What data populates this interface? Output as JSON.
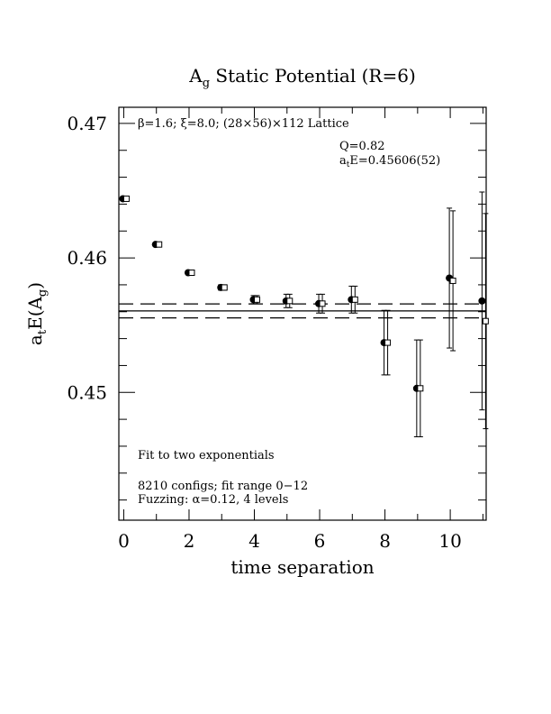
{
  "chart_data": {
    "type": "scatter",
    "title": "A_g Static Potential (R=6)",
    "title_parts": {
      "pre": "A",
      "sub": "g",
      "post": " Static Potential (R=6)"
    },
    "xlabel": "time separation",
    "ylabel": "a_tE(A_g)",
    "ylabel_parts": {
      "a": "a",
      "t_sub": "t",
      "mid": "E(A",
      "g_sub": "g",
      "close": ")"
    },
    "xlim": [
      -0.15,
      11.1
    ],
    "ylim": [
      0.4405,
      0.4712
    ],
    "x_ticks": [
      0,
      2,
      4,
      6,
      8,
      10
    ],
    "x_tick_labels": [
      "0",
      "2",
      "4",
      "6",
      "8",
      "10"
    ],
    "y_ticks": [
      0.45,
      0.46,
      0.47
    ],
    "y_tick_labels": [
      "0.45",
      "0.46",
      "0.47"
    ],
    "annotations": {
      "lattice": "β=1.6; ξ=8.0; (28×56)×112 Lattice",
      "q": "Q=0.82",
      "energy_pre": "a",
      "energy_sub": "t",
      "energy_post": "E=0.45606(52)",
      "fit_type": "Fit to two exponentials",
      "configs": "8210 configs; fit range 0−12",
      "fuzzing": "Fuzzing: α=0.12, 4 levels"
    },
    "fit": {
      "value": 0.45606,
      "error": 0.00052,
      "x_range": [
        0,
        12
      ]
    },
    "series": [
      {
        "marker": "filled-circle",
        "points": [
          {
            "x": 0,
            "y": 0.4644,
            "err": 0.0001
          },
          {
            "x": 1,
            "y": 0.461,
            "err": 0.0001
          },
          {
            "x": 2,
            "y": 0.4589,
            "err": 0.0001
          },
          {
            "x": 3,
            "y": 0.4578,
            "err": 0.0002
          },
          {
            "x": 4,
            "y": 0.4569,
            "err": 0.0003
          },
          {
            "x": 5,
            "y": 0.4568,
            "err": 0.0005
          },
          {
            "x": 6,
            "y": 0.4566,
            "err": 0.0007
          },
          {
            "x": 7,
            "y": 0.4569,
            "err": 0.001
          },
          {
            "x": 8,
            "y": 0.4537,
            "err": 0.0024
          },
          {
            "x": 9,
            "y": 0.4503,
            "err": 0.0036
          },
          {
            "x": 10,
            "y": 0.4585,
            "err": 0.0052
          },
          {
            "x": 11,
            "y": 0.4568,
            "err": 0.0081
          }
        ]
      },
      {
        "marker": "open-square",
        "points": [
          {
            "x": 0,
            "y": 0.4644,
            "err": 0.0001
          },
          {
            "x": 1,
            "y": 0.461,
            "err": 0.0001
          },
          {
            "x": 2,
            "y": 0.4589,
            "err": 0.0001
          },
          {
            "x": 3,
            "y": 0.4578,
            "err": 0.0002
          },
          {
            "x": 4,
            "y": 0.4569,
            "err": 0.0003
          },
          {
            "x": 5,
            "y": 0.4568,
            "err": 0.0005
          },
          {
            "x": 6,
            "y": 0.4566,
            "err": 0.0007
          },
          {
            "x": 7,
            "y": 0.4569,
            "err": 0.001
          },
          {
            "x": 8,
            "y": 0.4537,
            "err": 0.0024
          },
          {
            "x": 9,
            "y": 0.4503,
            "err": 0.0036
          },
          {
            "x": 10,
            "y": 0.4583,
            "err": 0.0052
          },
          {
            "x": 11,
            "y": 0.4553,
            "err": 0.008
          }
        ]
      }
    ]
  }
}
